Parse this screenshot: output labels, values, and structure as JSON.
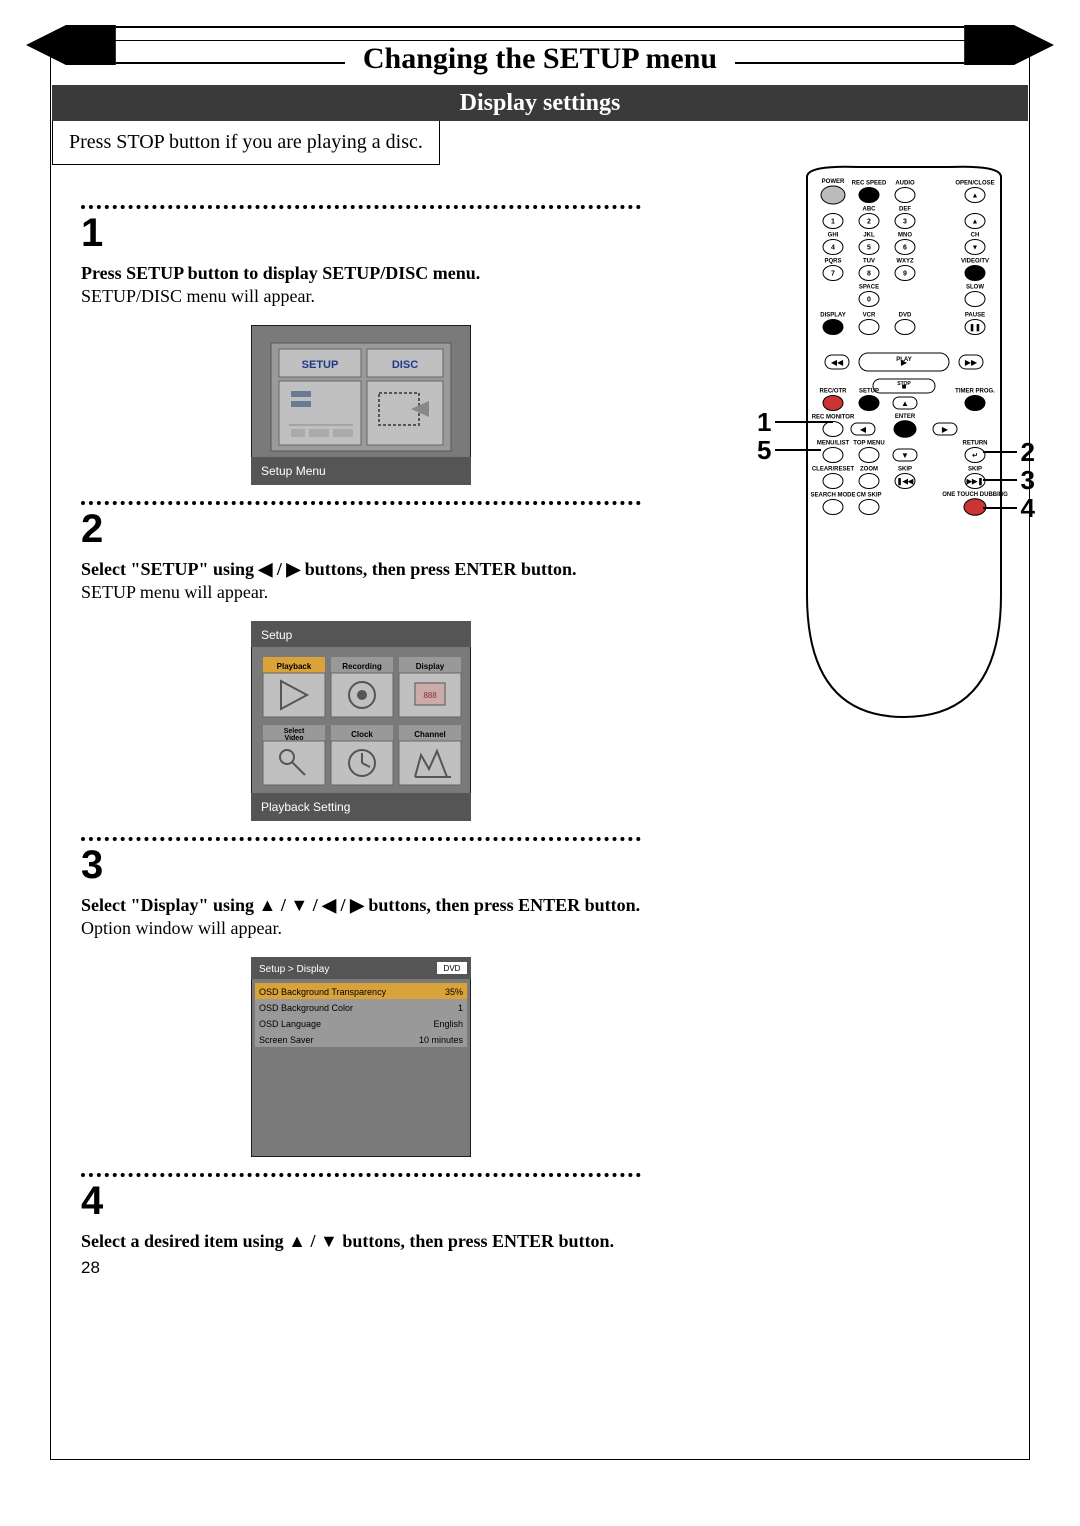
{
  "title": "Changing the SETUP menu",
  "subtitle": "Display settings",
  "intro": "Press STOP button if you are playing a disc.",
  "steps": {
    "s1": {
      "num": "1",
      "head": "Press SETUP button to display SETUP/DISC menu.",
      "sub": "SETUP/DISC menu will appear.",
      "screen": {
        "label_setup": "SETUP",
        "label_disc": "DISC",
        "footer": "Setup Menu",
        "bg": "#7a7a7a",
        "panel": "#9a9a9a",
        "tile": "#c0c0c0"
      }
    },
    "s2": {
      "num": "2",
      "head_pre": "Select \"SETUP\" using ",
      "head_mid1": " / ",
      "head_post": " buttons, then press ENTER button.",
      "sub": "SETUP menu will appear.",
      "screen": {
        "header": "Setup",
        "tiles": [
          "Playback",
          "Recording",
          "Display",
          "Select Video",
          "Clock",
          "Channel"
        ],
        "footer": "Playback Setting",
        "select_color": "#d9a33a"
      }
    },
    "s3": {
      "num": "3",
      "head_pre": "Select \"Display\" using ",
      "head_post": " buttons, then press ENTER button.",
      "sub": "Option window will appear.",
      "screen": {
        "header": "Setup > Display",
        "badge": "DVD",
        "rows": [
          {
            "k": "OSD Background Transparency",
            "v": "35%"
          },
          {
            "k": "OSD Background Color",
            "v": "1"
          },
          {
            "k": "OSD Language",
            "v": "English"
          },
          {
            "k": "Screen Saver",
            "v": "10 minutes"
          }
        ],
        "hl_color": "#d9a33a"
      }
    },
    "s4": {
      "num": "4",
      "head_pre": "Select a desired item using ",
      "head_post": " buttons, then press ENTER button."
    }
  },
  "remote": {
    "left_nums": [
      "1",
      "5"
    ],
    "right_nums": [
      "2",
      "3",
      "4"
    ],
    "button_labels": {
      "r1": [
        "POWER",
        "REC SPEED",
        "AUDIO",
        "OPEN/CLOSE"
      ],
      "r2t": [
        "",
        "ABC",
        "DEF",
        ""
      ],
      "r2": [
        "1",
        "2",
        "3",
        ""
      ],
      "r3t": [
        "GHI",
        "JKL",
        "MNO",
        "CH"
      ],
      "r3": [
        "4",
        "5",
        "6",
        ""
      ],
      "r4t": [
        "PQRS",
        "TUV",
        "WXYZ",
        "VIDEO/TV"
      ],
      "r4": [
        "7",
        "8",
        "9",
        ""
      ],
      "r5t": [
        "",
        "SPACE",
        "",
        "SLOW"
      ],
      "r5": [
        "",
        "0",
        "",
        ""
      ],
      "r6t": [
        "DISPLAY",
        "VCR",
        "DVD",
        "PAUSE"
      ],
      "r7": [
        "PLAY"
      ],
      "r8": [
        "STOP"
      ],
      "r9t": [
        "REC/OTR",
        "SETUP",
        "",
        "TIMER PROG."
      ],
      "r10t": [
        "REC MONITOR",
        "",
        "ENTER",
        ""
      ],
      "r11t": [
        "MENU/LIST",
        "TOP MENU",
        "",
        "RETURN"
      ],
      "r12t": [
        "CLEAR/RESET",
        "ZOOM",
        "SKIP",
        "SKIP"
      ],
      "r13t": [
        "SEARCH MODE",
        "CM SKIP",
        "",
        "ONE TOUCH DUBBING"
      ]
    }
  },
  "page_number": "28"
}
